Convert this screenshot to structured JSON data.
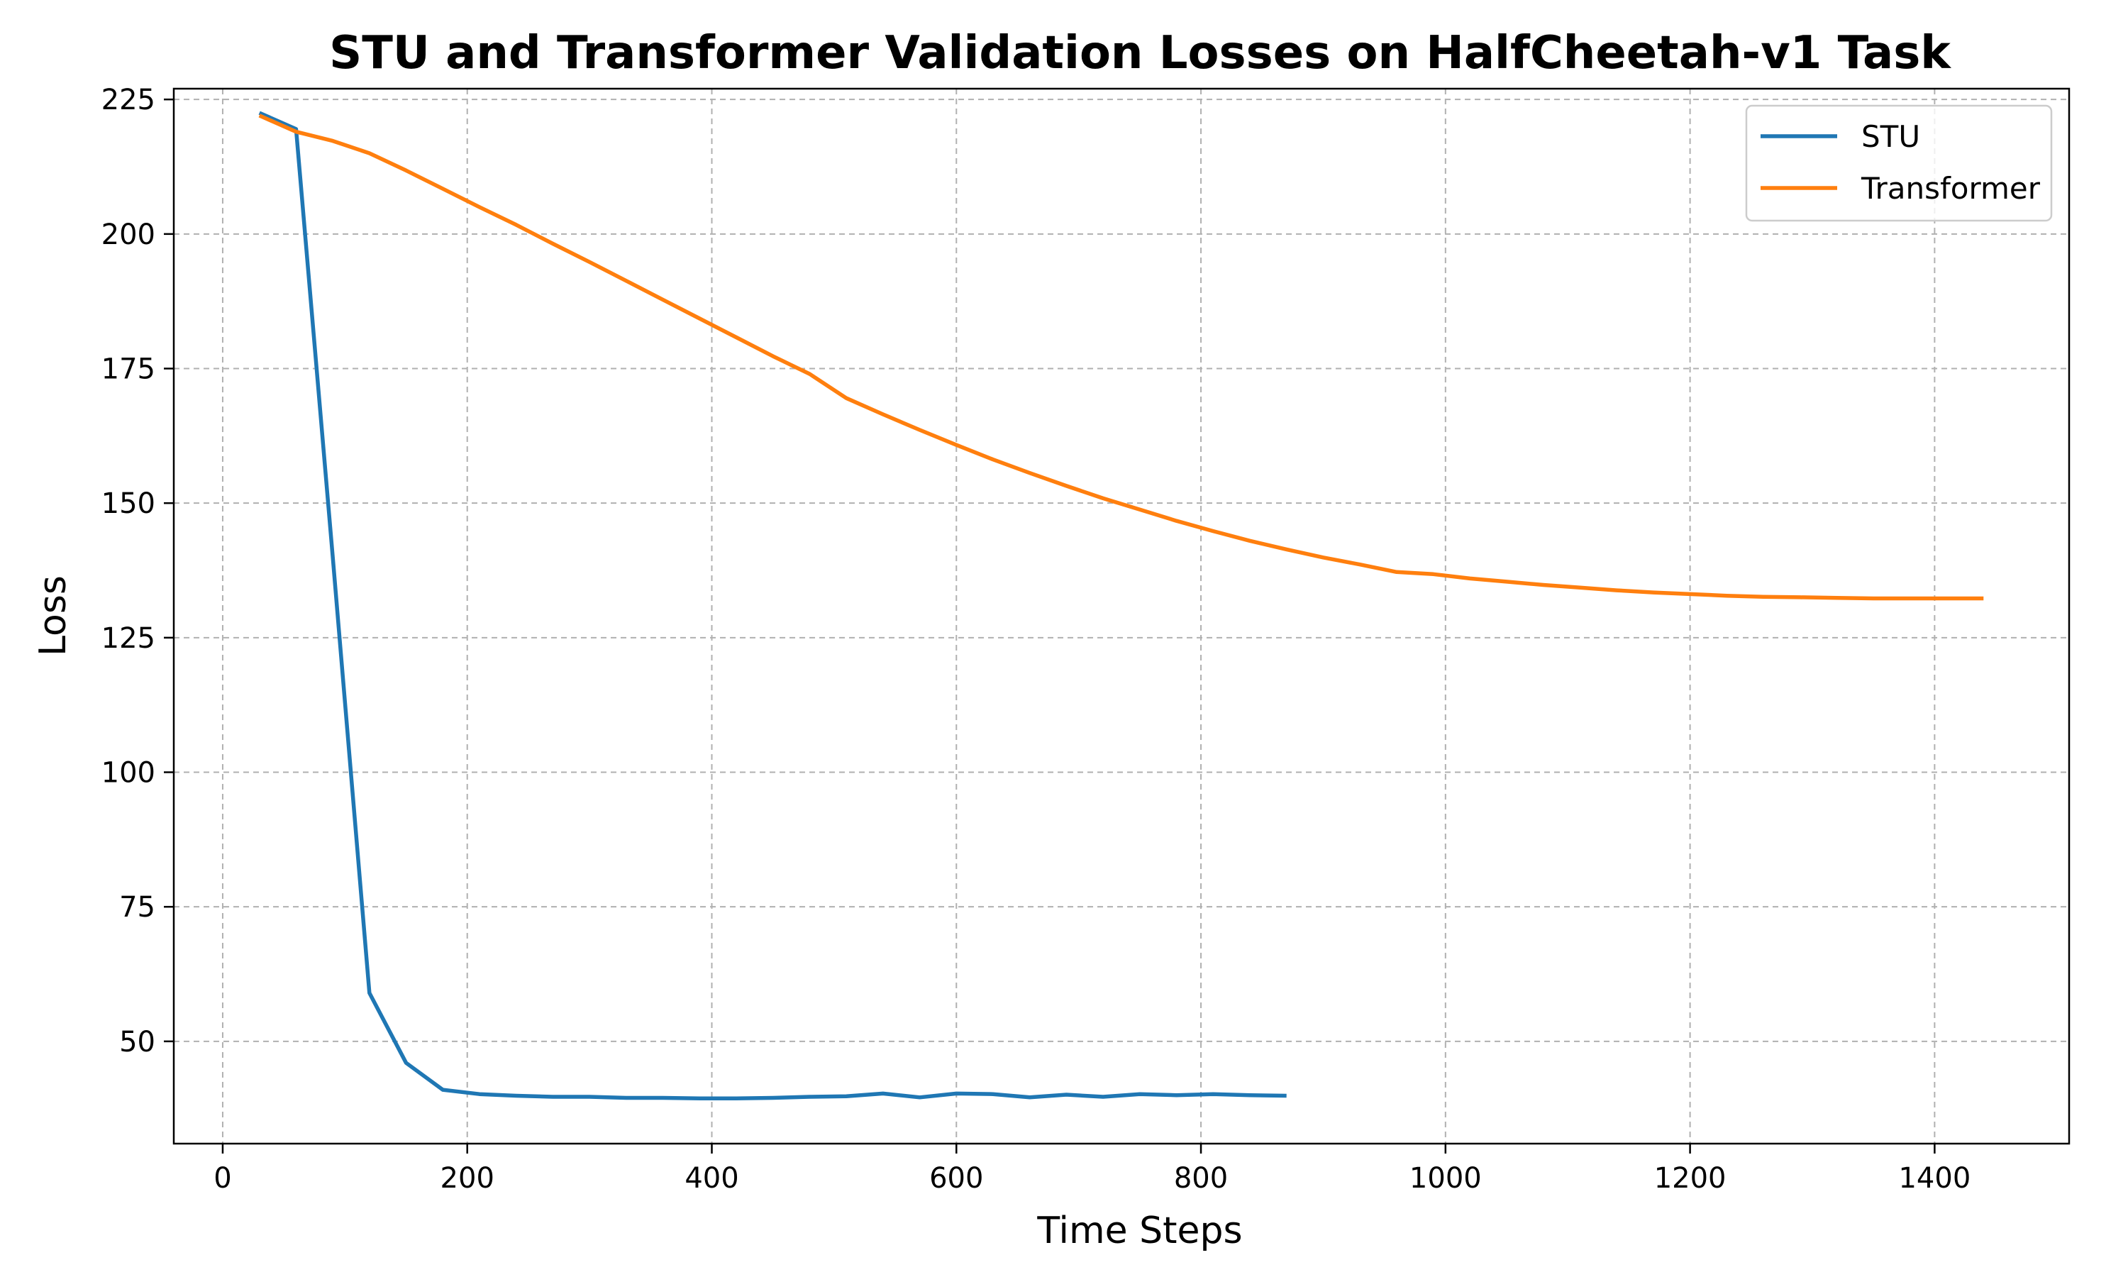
{
  "chart_data": {
    "type": "line",
    "title": "STU and Transformer Validation Losses on HalfCheetah-v1 Task",
    "xlabel": "Time Steps",
    "ylabel": "Loss",
    "xlim": [
      -40,
      1510
    ],
    "ylim": [
      31,
      227
    ],
    "xticks": [
      0,
      200,
      400,
      600,
      800,
      1000,
      1200,
      1400
    ],
    "yticks": [
      50,
      75,
      100,
      125,
      150,
      175,
      200,
      225
    ],
    "grid": true,
    "legend_position": "top-right",
    "series": [
      {
        "name": "STU",
        "color": "#1f77b4",
        "x": [
          30,
          60,
          90,
          120,
          150,
          180,
          210,
          240,
          270,
          300,
          330,
          360,
          390,
          420,
          450,
          480,
          510,
          540,
          570,
          600,
          630,
          660,
          690,
          720,
          750,
          780,
          810,
          840,
          870
        ],
        "y": [
          222.5,
          219.5,
          140,
          59,
          46,
          41,
          40.2,
          39.9,
          39.7,
          39.7,
          39.5,
          39.5,
          39.4,
          39.4,
          39.5,
          39.7,
          39.8,
          40.3,
          39.6,
          40.3,
          40.2,
          39.6,
          40.1,
          39.7,
          40.2,
          40.0,
          40.2,
          40.0,
          39.9
        ]
      },
      {
        "name": "Transformer",
        "color": "#ff7f0e",
        "x": [
          30,
          60,
          90,
          120,
          150,
          180,
          210,
          240,
          270,
          300,
          330,
          360,
          390,
          420,
          450,
          480,
          510,
          540,
          570,
          600,
          630,
          660,
          690,
          720,
          750,
          780,
          810,
          840,
          870,
          900,
          930,
          960,
          990,
          1020,
          1050,
          1080,
          1110,
          1140,
          1170,
          1200,
          1230,
          1260,
          1290,
          1320,
          1350,
          1380,
          1410,
          1440
        ],
        "y": [
          222,
          219,
          217.3,
          215,
          211.8,
          208.4,
          205,
          201.7,
          198.2,
          194.8,
          191.3,
          187.8,
          184.3,
          180.8,
          177.3,
          174,
          169.5,
          166.5,
          163.6,
          160.8,
          158.1,
          155.6,
          153.2,
          150.9,
          148.8,
          146.7,
          144.8,
          143,
          141.4,
          139.9,
          138.6,
          137.2,
          136.8,
          136,
          135.4,
          134.8,
          134.3,
          133.8,
          133.4,
          133.1,
          132.8,
          132.6,
          132.5,
          132.4,
          132.3,
          132.3,
          132.3,
          132.3
        ]
      }
    ]
  }
}
